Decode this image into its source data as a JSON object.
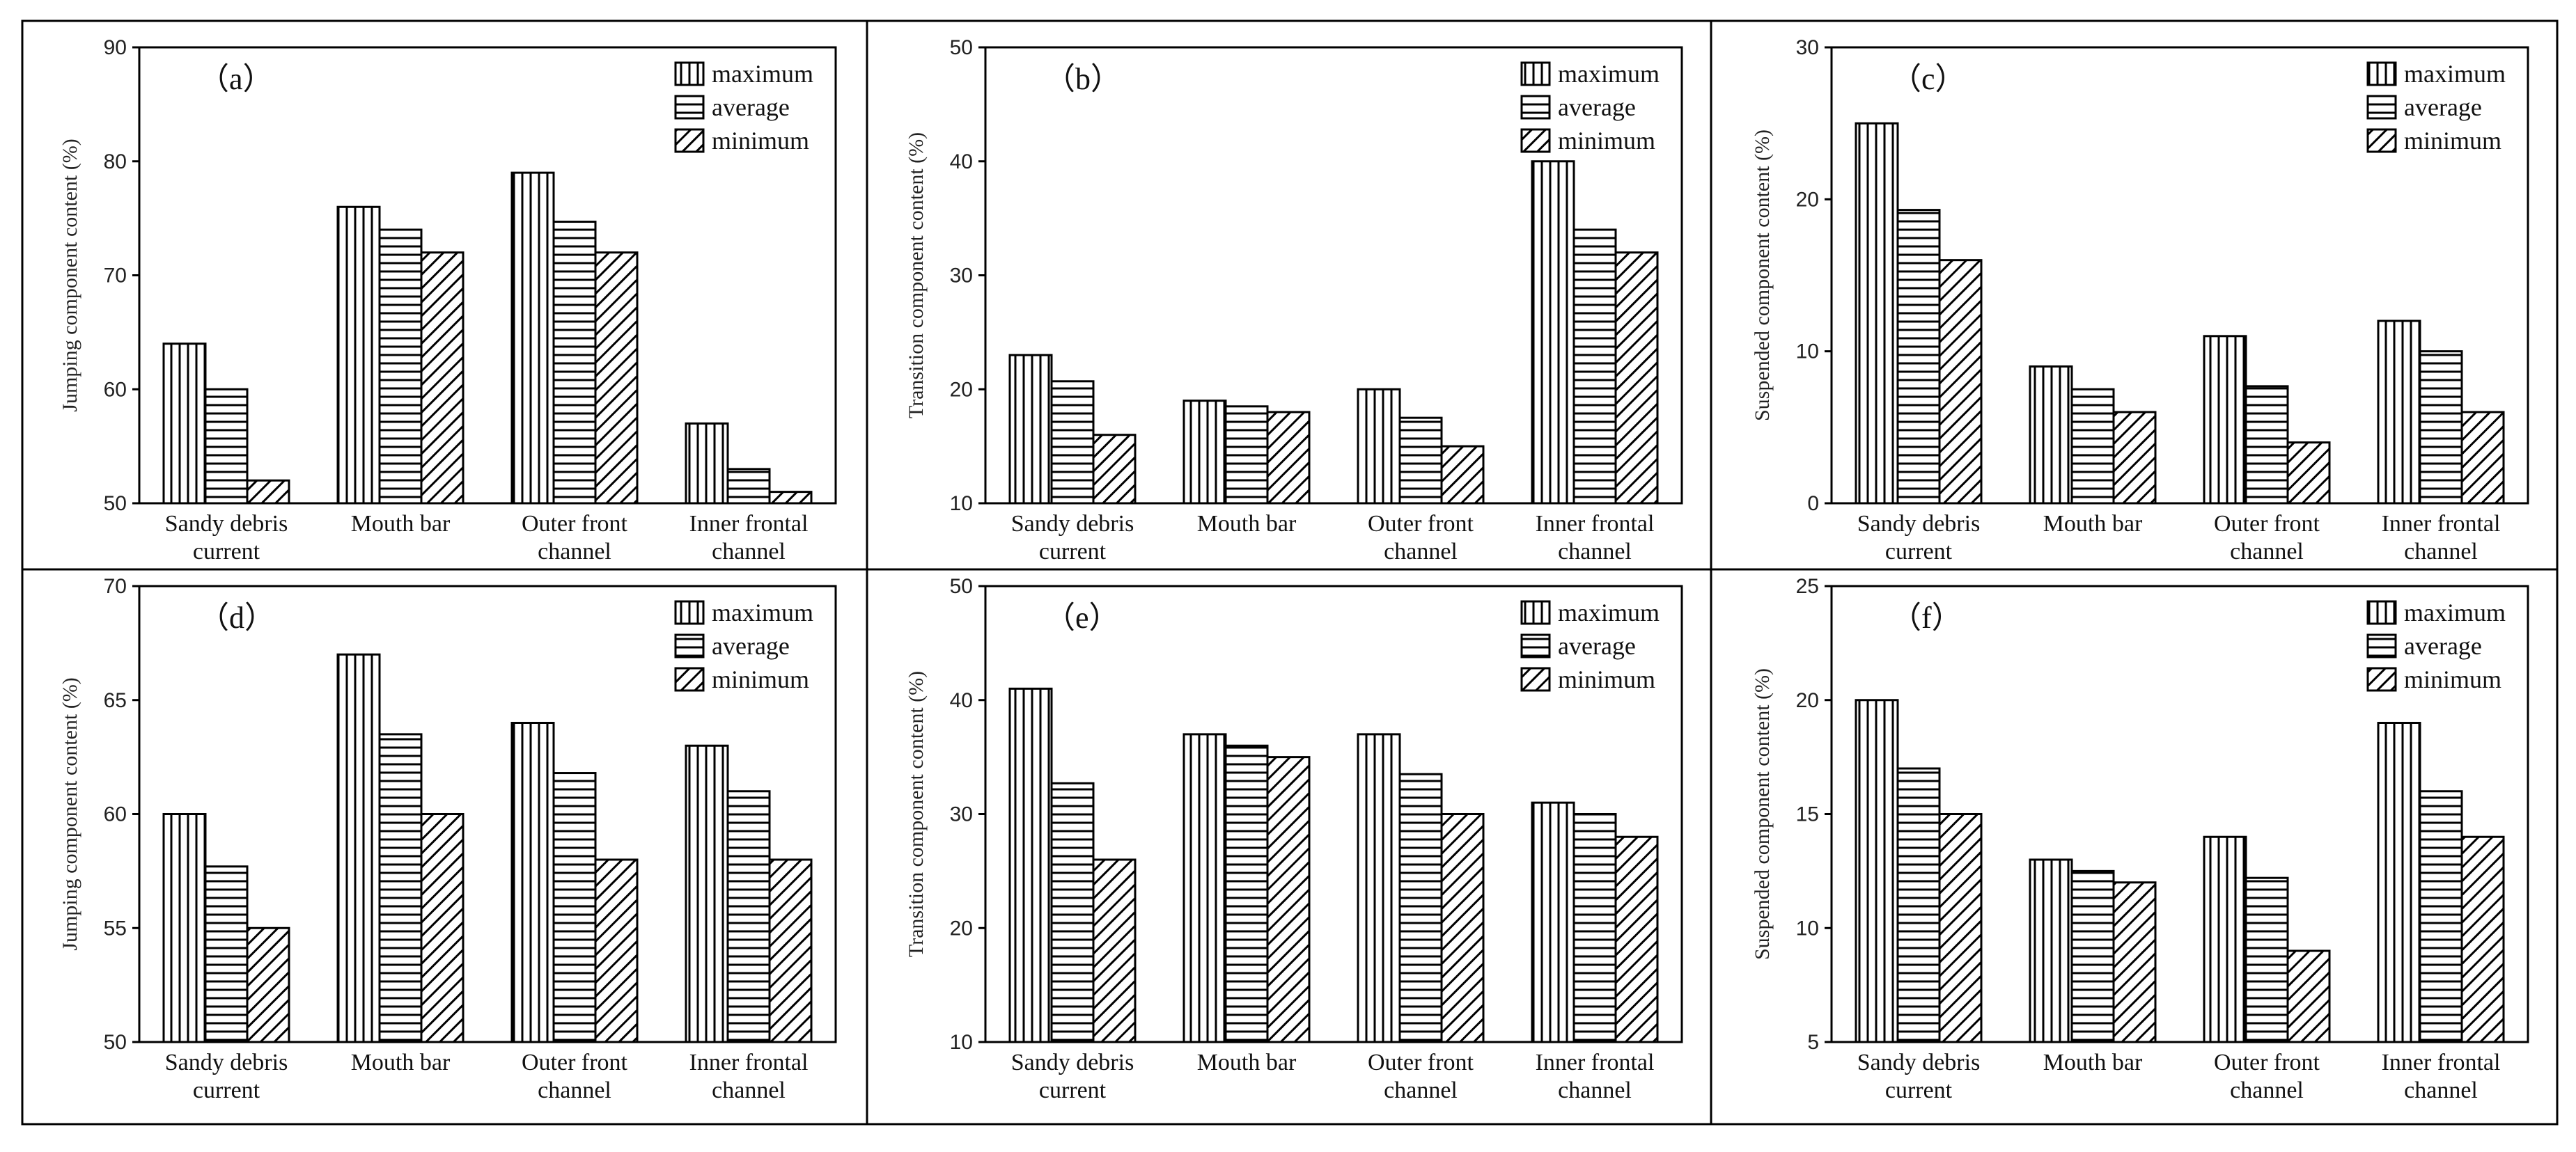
{
  "chart_data": [
    {
      "type": "bar",
      "panel": "（a）",
      "ylabel": "Jumping component content (%)",
      "ylim": [
        50,
        90
      ],
      "yticks": [
        50,
        60,
        70,
        80,
        90
      ],
      "categories": [
        [
          "Sandy debris",
          "current"
        ],
        [
          "Mouth bar"
        ],
        [
          "Outer front",
          "channel"
        ],
        [
          "Inner frontal",
          "channel"
        ]
      ],
      "series": [
        {
          "name": "maximum",
          "values": [
            64,
            76,
            79,
            57
          ]
        },
        {
          "name": "average",
          "values": [
            60,
            74,
            74.7,
            53
          ]
        },
        {
          "name": "minimum",
          "values": [
            52,
            72,
            72,
            51
          ]
        }
      ]
    },
    {
      "type": "bar",
      "panel": "（b）",
      "ylabel": "Transition component content (%)",
      "ylim": [
        10,
        50
      ],
      "yticks": [
        10,
        20,
        30,
        40,
        50
      ],
      "categories": [
        [
          "Sandy debris",
          "current"
        ],
        [
          "Mouth bar"
        ],
        [
          "Outer front",
          "channel"
        ],
        [
          "Inner frontal",
          "channel"
        ]
      ],
      "series": [
        {
          "name": "maximum",
          "values": [
            23,
            19,
            20,
            40
          ]
        },
        {
          "name": "average",
          "values": [
            20.7,
            18.5,
            17.5,
            34
          ]
        },
        {
          "name": "minimum",
          "values": [
            16,
            18,
            15,
            32
          ]
        }
      ]
    },
    {
      "type": "bar",
      "panel": "（c）",
      "ylabel": "Suspended component content (%)",
      "ylim": [
        0,
        30
      ],
      "yticks": [
        0,
        10,
        20,
        30
      ],
      "categories": [
        [
          "Sandy debris",
          "current"
        ],
        [
          "Mouth bar"
        ],
        [
          "Outer front",
          "channel"
        ],
        [
          "Inner frontal",
          "channel"
        ]
      ],
      "series": [
        {
          "name": "maximum",
          "values": [
            25,
            9,
            11,
            12
          ]
        },
        {
          "name": "average",
          "values": [
            19.3,
            7.5,
            7.7,
            10
          ]
        },
        {
          "name": "minimum",
          "values": [
            16,
            6,
            4,
            6
          ]
        }
      ]
    },
    {
      "type": "bar",
      "panel": "（d）",
      "ylabel": "Jumping component content (%)",
      "ylim": [
        50,
        70
      ],
      "yticks": [
        50,
        55,
        60,
        65,
        70
      ],
      "categories": [
        [
          "Sandy debris",
          "current"
        ],
        [
          "Mouth bar"
        ],
        [
          "Outer front",
          "channel"
        ],
        [
          "Inner frontal",
          "channel"
        ]
      ],
      "series": [
        {
          "name": "maximum",
          "values": [
            60,
            67,
            64,
            63
          ]
        },
        {
          "name": "average",
          "values": [
            57.7,
            63.5,
            61.8,
            61
          ]
        },
        {
          "name": "minimum",
          "values": [
            55,
            60,
            58,
            58
          ]
        }
      ]
    },
    {
      "type": "bar",
      "panel": "（e）",
      "ylabel": "Transition component content (%)",
      "ylim": [
        10,
        50
      ],
      "yticks": [
        10,
        20,
        30,
        40,
        50
      ],
      "categories": [
        [
          "Sandy debris",
          "current"
        ],
        [
          "Mouth bar"
        ],
        [
          "Outer front",
          "channel"
        ],
        [
          "Inner frontal",
          "channel"
        ]
      ],
      "series": [
        {
          "name": "maximum",
          "values": [
            41,
            37,
            37,
            31
          ]
        },
        {
          "name": "average",
          "values": [
            32.7,
            36,
            33.5,
            30
          ]
        },
        {
          "name": "minimum",
          "values": [
            26,
            35,
            30,
            28
          ]
        }
      ]
    },
    {
      "type": "bar",
      "panel": "（f）",
      "ylabel": "Suspended component content (%)",
      "ylim": [
        5,
        25
      ],
      "yticks": [
        5,
        10,
        15,
        20,
        25
      ],
      "categories": [
        [
          "Sandy debris",
          "current"
        ],
        [
          "Mouth bar"
        ],
        [
          "Outer front",
          "channel"
        ],
        [
          "Inner frontal",
          "channel"
        ]
      ],
      "series": [
        {
          "name": "maximum",
          "values": [
            20,
            13,
            14,
            19
          ]
        },
        {
          "name": "average",
          "values": [
            17,
            12.5,
            12.2,
            16
          ]
        },
        {
          "name": "minimum",
          "values": [
            15,
            12,
            9,
            14
          ]
        }
      ]
    }
  ]
}
